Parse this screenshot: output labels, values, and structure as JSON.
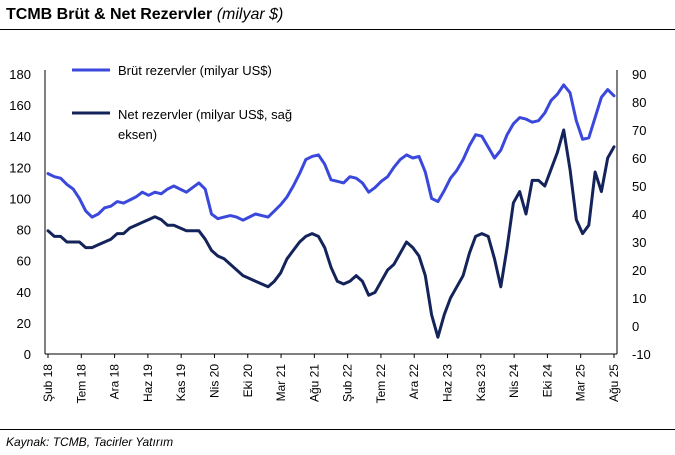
{
  "header": {
    "title": "TCMB Brüt & Net Rezervler",
    "unit": "(milyar $)"
  },
  "footer": {
    "source": "Kaynak: TCMB, Tacirler Yatırım"
  },
  "colors": {
    "brut": "#3a48dc",
    "net": "#14245a"
  },
  "chart_data": {
    "type": "line",
    "title": "TCMB Brüt & Net Rezervler (milyar $)",
    "grid": false,
    "legend_position": "top-left",
    "x_tick_labels": [
      "Şub 18",
      "Tem 18",
      "Ara 18",
      "Haz 19",
      "Kas 19",
      "Nis 20",
      "Eki 20",
      "Mar 21",
      "Ağu 21",
      "Şub 22",
      "Tem 22",
      "Ara 22",
      "Haz 23",
      "Kas 23",
      "Nis 24",
      "Eki 24",
      "Mar 25",
      "Ağu 25"
    ],
    "left_axis": {
      "ylim": [
        0,
        180
      ],
      "ticks": [
        0,
        20,
        40,
        60,
        80,
        100,
        120,
        140,
        160,
        180
      ]
    },
    "right_axis": {
      "ylim": [
        -10,
        90
      ],
      "ticks": [
        -10,
        0,
        10,
        20,
        30,
        40,
        50,
        60,
        70,
        80,
        90
      ]
    },
    "series": [
      {
        "name": "Brüt rezervler (milyar US$)",
        "axis": "left",
        "values": [
          [
            0,
            116
          ],
          [
            1,
            114
          ],
          [
            2,
            113
          ],
          [
            3,
            109
          ],
          [
            4,
            106
          ],
          [
            5,
            100
          ],
          [
            6,
            92
          ],
          [
            7,
            88
          ],
          [
            8,
            90
          ],
          [
            9,
            94
          ],
          [
            10,
            95
          ],
          [
            11,
            98
          ],
          [
            12,
            97
          ],
          [
            13,
            99
          ],
          [
            14,
            101
          ],
          [
            15,
            104
          ],
          [
            16,
            102
          ],
          [
            17,
            104
          ],
          [
            18,
            103
          ],
          [
            19,
            106
          ],
          [
            20,
            108
          ],
          [
            21,
            106
          ],
          [
            22,
            104
          ],
          [
            23,
            107
          ],
          [
            24,
            110
          ],
          [
            25,
            106
          ],
          [
            26,
            90
          ],
          [
            27,
            87
          ],
          [
            28,
            88
          ],
          [
            29,
            89
          ],
          [
            30,
            88
          ],
          [
            31,
            86
          ],
          [
            32,
            88
          ],
          [
            33,
            90
          ],
          [
            34,
            89
          ],
          [
            35,
            88
          ],
          [
            36,
            92
          ],
          [
            37,
            96
          ],
          [
            38,
            101
          ],
          [
            39,
            108
          ],
          [
            40,
            116
          ],
          [
            41,
            125
          ],
          [
            42,
            127
          ],
          [
            43,
            128
          ],
          [
            44,
            122
          ],
          [
            45,
            112
          ],
          [
            46,
            111
          ],
          [
            47,
            110
          ],
          [
            48,
            114
          ],
          [
            49,
            113
          ],
          [
            50,
            110
          ],
          [
            51,
            104
          ],
          [
            52,
            107
          ],
          [
            53,
            111
          ],
          [
            54,
            114
          ],
          [
            55,
            120
          ],
          [
            56,
            125
          ],
          [
            57,
            128
          ],
          [
            58,
            126
          ],
          [
            59,
            127
          ],
          [
            60,
            117
          ],
          [
            61,
            100
          ],
          [
            62,
            98
          ],
          [
            63,
            105
          ],
          [
            64,
            113
          ],
          [
            65,
            118
          ],
          [
            66,
            125
          ],
          [
            67,
            134
          ],
          [
            68,
            141
          ],
          [
            69,
            140
          ],
          [
            70,
            133
          ],
          [
            71,
            126
          ],
          [
            72,
            131
          ],
          [
            73,
            141
          ],
          [
            74,
            148
          ],
          [
            75,
            152
          ],
          [
            76,
            151
          ],
          [
            77,
            149
          ],
          [
            78,
            150
          ],
          [
            79,
            155
          ],
          [
            80,
            163
          ],
          [
            81,
            167
          ],
          [
            82,
            173
          ],
          [
            83,
            168
          ],
          [
            84,
            150
          ],
          [
            85,
            138
          ],
          [
            86,
            139
          ],
          [
            87,
            152
          ],
          [
            88,
            165
          ],
          [
            89,
            170
          ],
          [
            90,
            166
          ]
        ]
      },
      {
        "name": "Net rezervler (milyar US$, sağ eksen)",
        "axis": "right",
        "values": [
          [
            0,
            34
          ],
          [
            1,
            32
          ],
          [
            2,
            32
          ],
          [
            3,
            30
          ],
          [
            4,
            30
          ],
          [
            5,
            30
          ],
          [
            6,
            28
          ],
          [
            7,
            28
          ],
          [
            8,
            29
          ],
          [
            9,
            30
          ],
          [
            10,
            31
          ],
          [
            11,
            33
          ],
          [
            12,
            33
          ],
          [
            13,
            35
          ],
          [
            14,
            36
          ],
          [
            15,
            37
          ],
          [
            16,
            38
          ],
          [
            17,
            39
          ],
          [
            18,
            38
          ],
          [
            19,
            36
          ],
          [
            20,
            36
          ],
          [
            21,
            35
          ],
          [
            22,
            34
          ],
          [
            23,
            34
          ],
          [
            24,
            34
          ],
          [
            25,
            31
          ],
          [
            26,
            27
          ],
          [
            27,
            25
          ],
          [
            28,
            24
          ],
          [
            29,
            22
          ],
          [
            30,
            20
          ],
          [
            31,
            18
          ],
          [
            32,
            17
          ],
          [
            33,
            16
          ],
          [
            34,
            15
          ],
          [
            35,
            14
          ],
          [
            36,
            16
          ],
          [
            37,
            19
          ],
          [
            38,
            24
          ],
          [
            39,
            27
          ],
          [
            40,
            30
          ],
          [
            41,
            32
          ],
          [
            42,
            33
          ],
          [
            43,
            32
          ],
          [
            44,
            28
          ],
          [
            45,
            21
          ],
          [
            46,
            16
          ],
          [
            47,
            15
          ],
          [
            48,
            16
          ],
          [
            49,
            18
          ],
          [
            50,
            16
          ],
          [
            51,
            11
          ],
          [
            52,
            12
          ],
          [
            53,
            16
          ],
          [
            54,
            20
          ],
          [
            55,
            22
          ],
          [
            56,
            26
          ],
          [
            57,
            30
          ],
          [
            58,
            28
          ],
          [
            59,
            25
          ],
          [
            60,
            18
          ],
          [
            61,
            4
          ],
          [
            62,
            -4
          ],
          [
            63,
            4
          ],
          [
            64,
            10
          ],
          [
            65,
            14
          ],
          [
            66,
            18
          ],
          [
            67,
            26
          ],
          [
            68,
            32
          ],
          [
            69,
            33
          ],
          [
            70,
            32
          ],
          [
            71,
            24
          ],
          [
            72,
            14
          ],
          [
            73,
            28
          ],
          [
            74,
            44
          ],
          [
            75,
            48
          ],
          [
            76,
            40
          ],
          [
            77,
            52
          ],
          [
            78,
            52
          ],
          [
            79,
            50
          ],
          [
            80,
            56
          ],
          [
            81,
            62
          ],
          [
            82,
            70
          ],
          [
            83,
            56
          ],
          [
            84,
            38
          ],
          [
            85,
            33
          ],
          [
            86,
            36
          ],
          [
            87,
            55
          ],
          [
            88,
            48
          ],
          [
            89,
            60
          ],
          [
            90,
            64
          ]
        ]
      }
    ]
  }
}
